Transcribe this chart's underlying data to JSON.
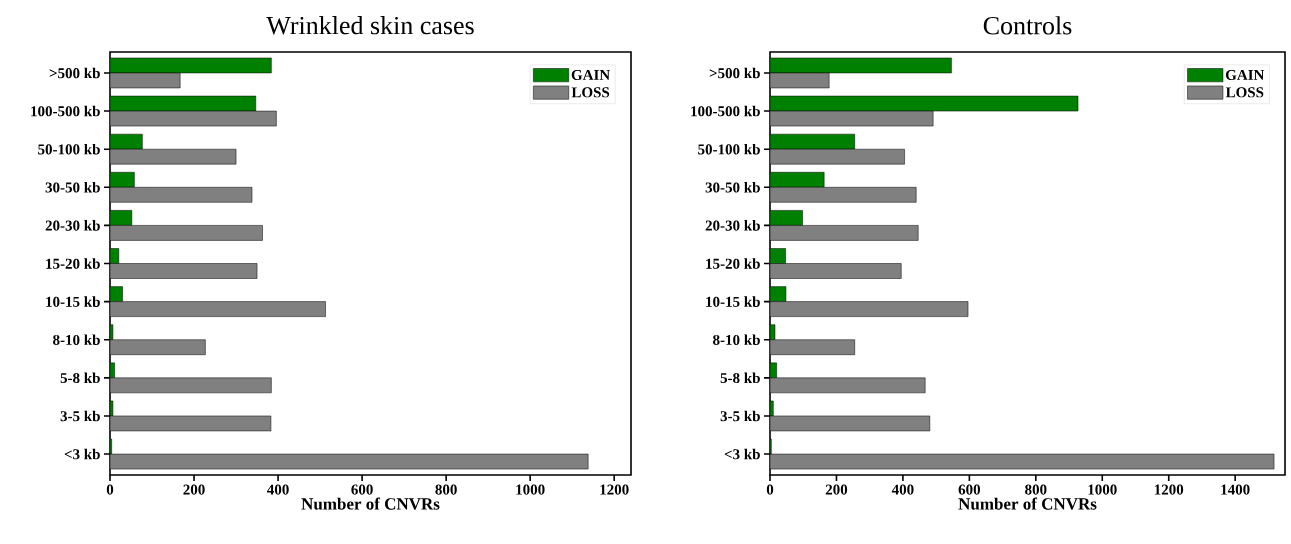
{
  "chart_data": [
    {
      "type": "bar",
      "orientation": "horizontal",
      "title": "Wrinkled skin cases",
      "xlabel": "Number of CNVRs",
      "categories": [
        ">500 kb",
        "100-500 kb",
        "50-100 kb",
        "30-50 kb",
        "20-30 kb",
        "15-20 kb",
        "10-15 kb",
        "8-10 kb",
        "5-8 kb",
        "3-5 kb",
        "<3 kb"
      ],
      "series": [
        {
          "name": "GAIN",
          "color": "#008000",
          "values": [
            384,
            347,
            77,
            58,
            52,
            21,
            30,
            7,
            11,
            7,
            4
          ]
        },
        {
          "name": "LOSS",
          "color": "#808080",
          "values": [
            167,
            396,
            300,
            338,
            363,
            350,
            513,
            227,
            384,
            383,
            1138
          ]
        }
      ],
      "xlim": [
        0,
        1240
      ],
      "xticks": [
        0,
        200,
        400,
        600,
        800,
        1000,
        1200
      ],
      "legend": "top right"
    },
    {
      "type": "bar",
      "orientation": "horizontal",
      "title": "Controls",
      "xlabel": "Number of CNVRs",
      "categories": [
        ">500 kb",
        "100-500 kb",
        "50-100 kb",
        "30-50 kb",
        "20-30 kb",
        "15-20 kb",
        "10-15 kb",
        "8-10 kb",
        "5-8 kb",
        "3-5 kb",
        "<3 kb"
      ],
      "series": [
        {
          "name": "GAIN",
          "color": "#008000",
          "values": [
            546,
            927,
            255,
            163,
            98,
            47,
            48,
            15,
            20,
            10,
            4
          ]
        },
        {
          "name": "LOSS",
          "color": "#808080",
          "values": [
            178,
            491,
            405,
            440,
            446,
            395,
            596,
            255,
            467,
            481,
            1517
          ]
        }
      ],
      "xlim": [
        0,
        1550
      ],
      "xticks": [
        0,
        200,
        400,
        600,
        800,
        1000,
        1200,
        1400
      ],
      "legend": "top right"
    }
  ]
}
